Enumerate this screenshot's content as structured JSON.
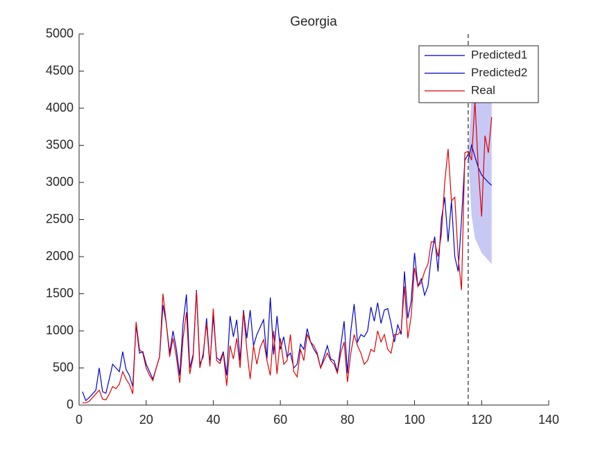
{
  "chart_data": {
    "type": "line",
    "title": "Georgia",
    "x": [
      1,
      2,
      3,
      4,
      5,
      6,
      7,
      8,
      9,
      10,
      11,
      12,
      13,
      14,
      15,
      16,
      17,
      18,
      19,
      20,
      21,
      22,
      23,
      24,
      25,
      26,
      27,
      28,
      29,
      30,
      31,
      32,
      33,
      34,
      35,
      36,
      37,
      38,
      39,
      40,
      41,
      42,
      43,
      44,
      45,
      46,
      47,
      48,
      49,
      50,
      51,
      52,
      53,
      54,
      55,
      56,
      57,
      58,
      59,
      60,
      61,
      62,
      63,
      64,
      65,
      66,
      67,
      68,
      69,
      70,
      71,
      72,
      73,
      74,
      75,
      76,
      77,
      78,
      79,
      80,
      81,
      82,
      83,
      84,
      85,
      86,
      87,
      88,
      89,
      90,
      91,
      92,
      93,
      94,
      95,
      96,
      97,
      98,
      99,
      100,
      101,
      102,
      103,
      104,
      105,
      106,
      107,
      108,
      109,
      110,
      111,
      112,
      113,
      114,
      115,
      116,
      117,
      118,
      119,
      120,
      121,
      122,
      123
    ],
    "series": [
      {
        "name": "Predicted1",
        "color": "#0000cc",
        "values": [
          180,
          60,
          100,
          150,
          200,
          500,
          180,
          160,
          350,
          550,
          500,
          450,
          720,
          480,
          400,
          250,
          1080,
          700,
          720,
          550,
          450,
          350,
          500,
          650,
          1350,
          1100,
          700,
          1000,
          750,
          400,
          1100,
          1490,
          500,
          680,
          1550,
          550,
          650,
          1170,
          550,
          1200,
          640,
          600,
          720,
          400,
          1200,
          920,
          1150,
          600,
          1280,
          900,
          1280,
          800,
          950,
          1050,
          1150,
          620,
          1450,
          680,
          1200,
          750,
          920,
          650,
          700,
          500,
          550,
          820,
          750,
          1030,
          850,
          750,
          680,
          500,
          650,
          800,
          620,
          600,
          450,
          800,
          1130,
          430,
          1000,
          1360,
          850,
          950,
          920,
          1000,
          1320,
          1130,
          1380,
          1100,
          1280,
          1300,
          1100,
          850,
          1080,
          950,
          1800,
          1170,
          1400,
          2050,
          1600,
          1700,
          1480,
          1600,
          2000,
          2270,
          1800,
          2500,
          2800,
          2200,
          2750,
          2000,
          1800,
          2500,
          3300,
          3380,
          null,
          null,
          null,
          null,
          null,
          null,
          null
        ]
      },
      {
        "name": "Predicted2",
        "color": "#0000cc",
        "x": [
          116,
          117,
          118,
          119,
          120,
          121,
          122,
          123
        ],
        "values": [
          3300,
          3500,
          3350,
          3200,
          3100,
          3050,
          3000,
          2960
        ]
      },
      {
        "name": "Real",
        "color": "#dd0000",
        "values": [
          30,
          30,
          50,
          100,
          150,
          200,
          80,
          70,
          150,
          250,
          220,
          280,
          450,
          350,
          280,
          150,
          1120,
          750,
          700,
          500,
          400,
          330,
          500,
          650,
          1500,
          1100,
          650,
          900,
          650,
          300,
          900,
          1250,
          420,
          650,
          1530,
          500,
          700,
          1100,
          520,
          1300,
          600,
          560,
          700,
          260,
          800,
          620,
          900,
          500,
          1250,
          750,
          350,
          800,
          550,
          780,
          880,
          600,
          400,
          1000,
          420,
          900,
          550,
          600,
          950,
          450,
          380,
          750,
          600,
          950,
          850,
          800,
          700,
          500,
          600,
          700,
          600,
          550,
          430,
          700,
          850,
          310,
          700,
          950,
          800,
          700,
          550,
          600,
          750,
          720,
          1000,
          850,
          950,
          750,
          700,
          950,
          950,
          1000,
          1600,
          900,
          1200,
          1850,
          1600,
          1650,
          1800,
          1900,
          2200,
          2200,
          2000,
          2300,
          3000,
          3450,
          2750,
          2800,
          2000,
          1550,
          3400,
          3420,
          3300,
          4100,
          3200,
          2540,
          3630,
          3400,
          3880
        ]
      }
    ],
    "band": {
      "color": "#c8c8f5",
      "x": [
        116,
        117,
        118,
        119,
        120,
        121,
        122,
        123
      ],
      "lower": [
        3380,
        2550,
        2250,
        2150,
        2050,
        2000,
        1950,
        1900
      ],
      "upper": [
        3380,
        4150,
        4100,
        4100,
        4100,
        4100,
        4100,
        4100
      ]
    },
    "vline": 116,
    "xlim": [
      0,
      140
    ],
    "xticks": [
      0,
      20,
      40,
      60,
      80,
      100,
      120,
      140
    ],
    "ylim": [
      0,
      5000
    ],
    "yticks": [
      0,
      500,
      1000,
      1500,
      2000,
      2500,
      3000,
      3500,
      4000,
      4500,
      5000
    ],
    "grid": false,
    "legend": "upper right"
  }
}
